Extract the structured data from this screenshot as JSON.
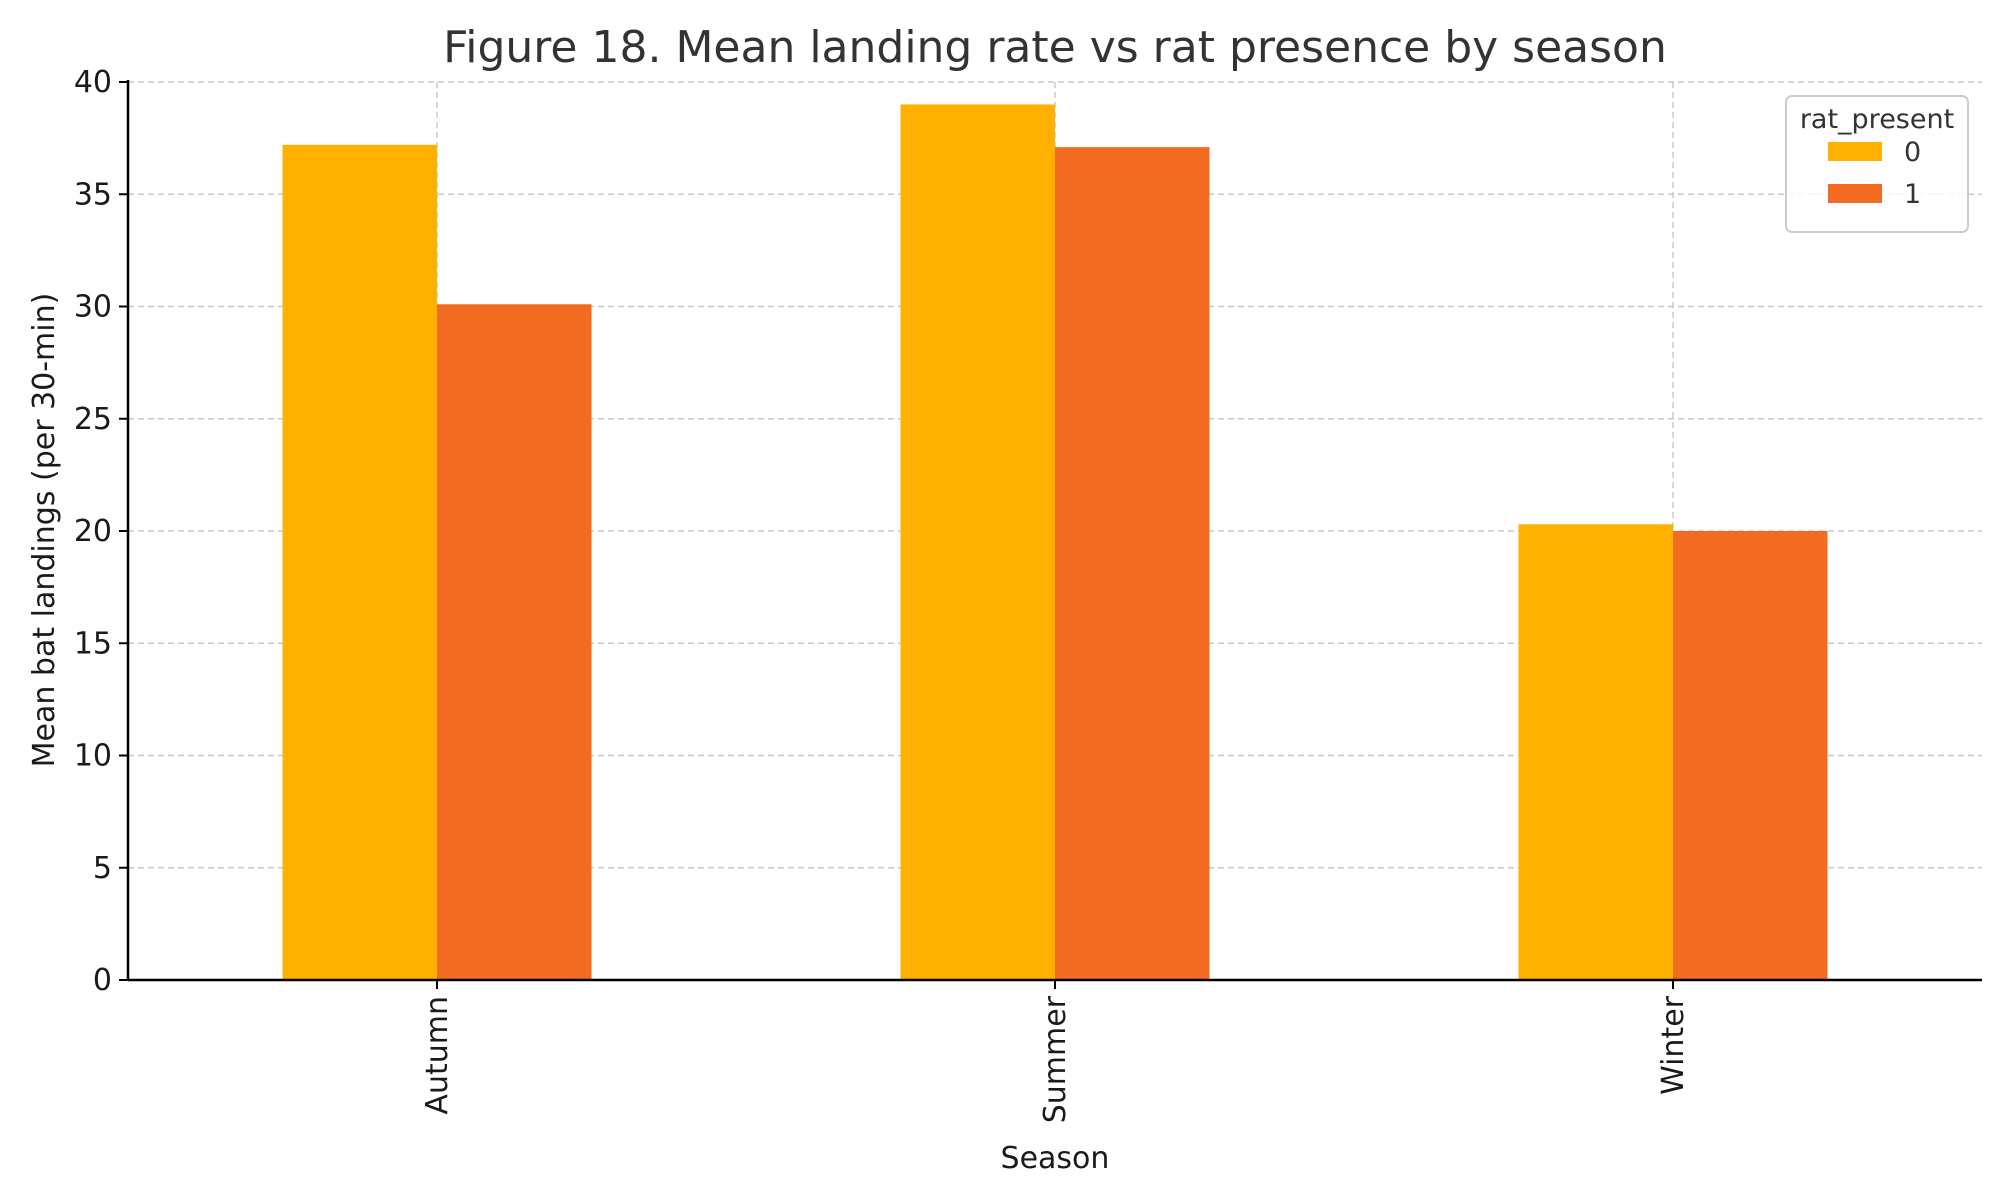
{
  "chart_data": {
    "type": "bar",
    "title": "Figure 18. Mean landing rate vs rat presence by season",
    "xlabel": "Season",
    "ylabel": "Mean bat landings (per 30-min)",
    "categories": [
      "Autumn",
      "Summer",
      "Winter"
    ],
    "series": [
      {
        "name": "0",
        "values": [
          37.2,
          39.0,
          20.3
        ],
        "color": "#FFB000"
      },
      {
        "name": "1",
        "values": [
          30.1,
          37.1,
          20.0
        ],
        "color": "#F26B21"
      }
    ],
    "ylim": [
      0,
      40
    ],
    "yticks": [
      0,
      5,
      10,
      15,
      20,
      25,
      30,
      35,
      40
    ],
    "grid": true,
    "legend": {
      "title": "rat_present",
      "position": "top-right"
    }
  }
}
